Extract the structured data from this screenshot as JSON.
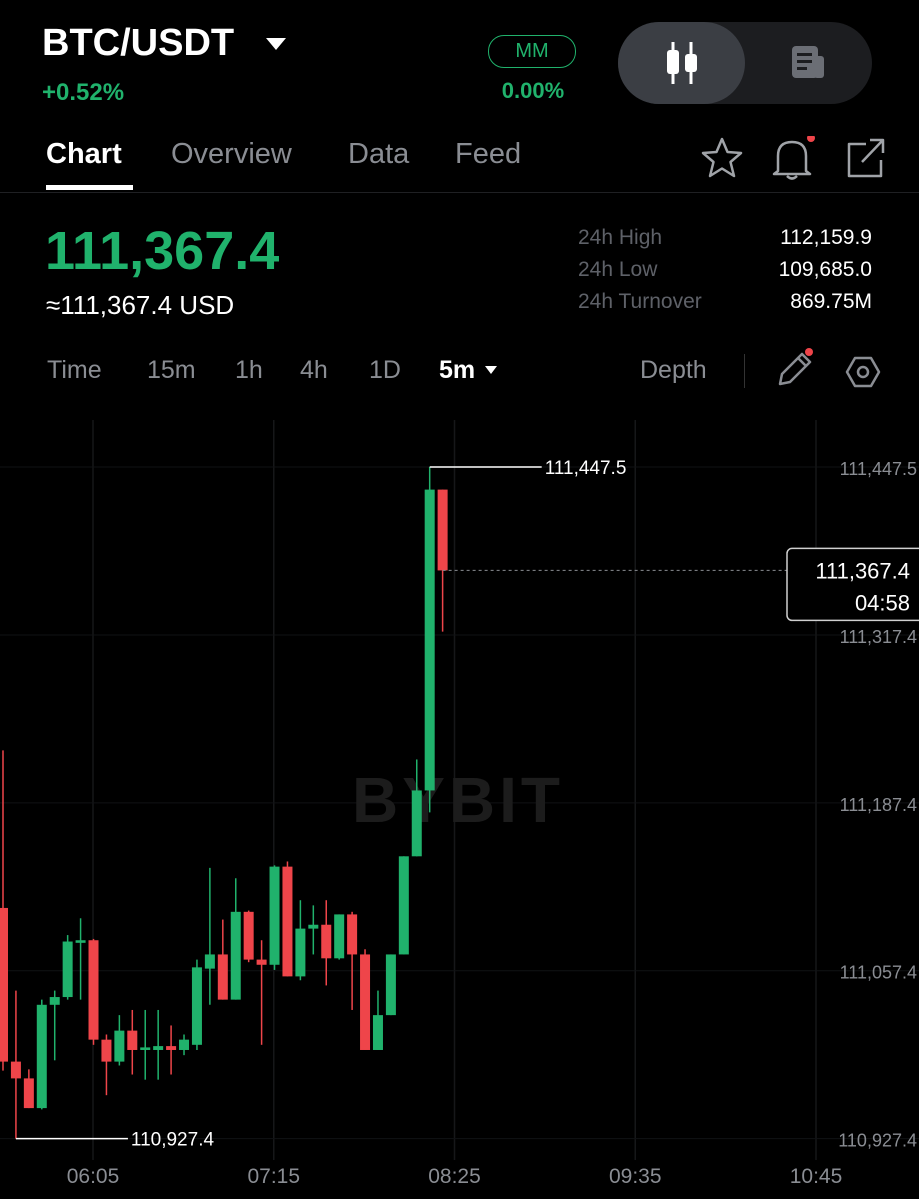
{
  "header": {
    "pair": "BTC/USDT",
    "change": "+0.52%",
    "badge": "MM",
    "badge_value": "0.00%"
  },
  "tabs": [
    "Chart",
    "Overview",
    "Data",
    "Feed"
  ],
  "ticker": {
    "price": "111,367.4",
    "usd_price": "≈111,367.4 USD"
  },
  "stats": [
    {
      "label": "24h High",
      "value": "112,159.9"
    },
    {
      "label": "24h Low",
      "value": "109,685.0"
    },
    {
      "label": "24h Turnover",
      "value": "869.75M"
    }
  ],
  "intervals": [
    "Time",
    "15m",
    "1h",
    "4h",
    "1D"
  ],
  "active_interval": "5m",
  "depth": "Depth",
  "chart_data": {
    "type": "candlestick",
    "watermark": "BYBIT",
    "up_color": "#20b26c",
    "down_color": "#ef454a",
    "open": [
      111106,
      110987,
      110974,
      110951,
      111031,
      111037,
      111079,
      111081,
      111004,
      110987,
      111011,
      110996,
      110996,
      110999,
      110996,
      111000,
      111059,
      111070,
      111035,
      111103,
      111066,
      111062,
      111138,
      111053,
      111090,
      111093,
      111067,
      111101,
      111070,
      110996,
      111023,
      111070,
      111146,
      111197,
      111430
    ],
    "high": [
      111228,
      111042,
      110981,
      111035,
      111042,
      111085,
      111098,
      111082,
      111008,
      111023,
      111027,
      111027,
      111027,
      111015,
      111008,
      111066,
      111137,
      111097,
      111129,
      111104,
      111081,
      111139,
      111142,
      111112,
      111108,
      111112,
      111101,
      111103,
      111074,
      111042,
      111070,
      111146,
      111221,
      111447.5,
      111430
    ],
    "low": [
      110980,
      110927.4,
      110951,
      110950,
      110988,
      111035,
      111035,
      111000,
      110961,
      110984,
      110977,
      110973,
      110973,
      110977,
      110992,
      110996,
      111031,
      111035,
      111035,
      111064,
      111000,
      111058,
      111053,
      111050,
      111070,
      111046,
      111066,
      111027,
      110996,
      110996,
      111023,
      111070,
      111146,
      111180,
      111320
    ],
    "close": [
      110987,
      110974,
      110951,
      111031,
      111037,
      111080,
      111081,
      111004,
      110987,
      111011,
      110996,
      110998,
      110999,
      110996,
      111004,
      111060,
      111070,
      111035,
      111103,
      111066,
      111062,
      111138,
      111053,
      111090,
      111093,
      111067,
      111101,
      111070,
      110996,
      111023,
      111070,
      111146,
      111197,
      111430,
      111367.4
    ],
    "ylim": [
      110910.8,
      111483.9
    ],
    "yticks": [
      {
        "value": 110927.4,
        "label": "110,927.4"
      },
      {
        "value": 111057.4,
        "label": "111,057.4"
      },
      {
        "value": 111187.4,
        "label": "111,187.4"
      },
      {
        "value": 111317.4,
        "label": "111,317.4"
      },
      {
        "value": 111447.5,
        "label": "111,447.5"
      }
    ],
    "xticks": [
      "06:05",
      "07:15",
      "08:25",
      "09:35",
      "10:45"
    ],
    "annotations": [
      {
        "value": 111447.5,
        "label": "111,447.5",
        "kind": "high"
      },
      {
        "value": 110927.4,
        "label": "110,927.4",
        "kind": "low"
      }
    ],
    "last_price": {
      "value": 111367.4,
      "label": "111,367.4"
    },
    "countdown": "04:58"
  }
}
